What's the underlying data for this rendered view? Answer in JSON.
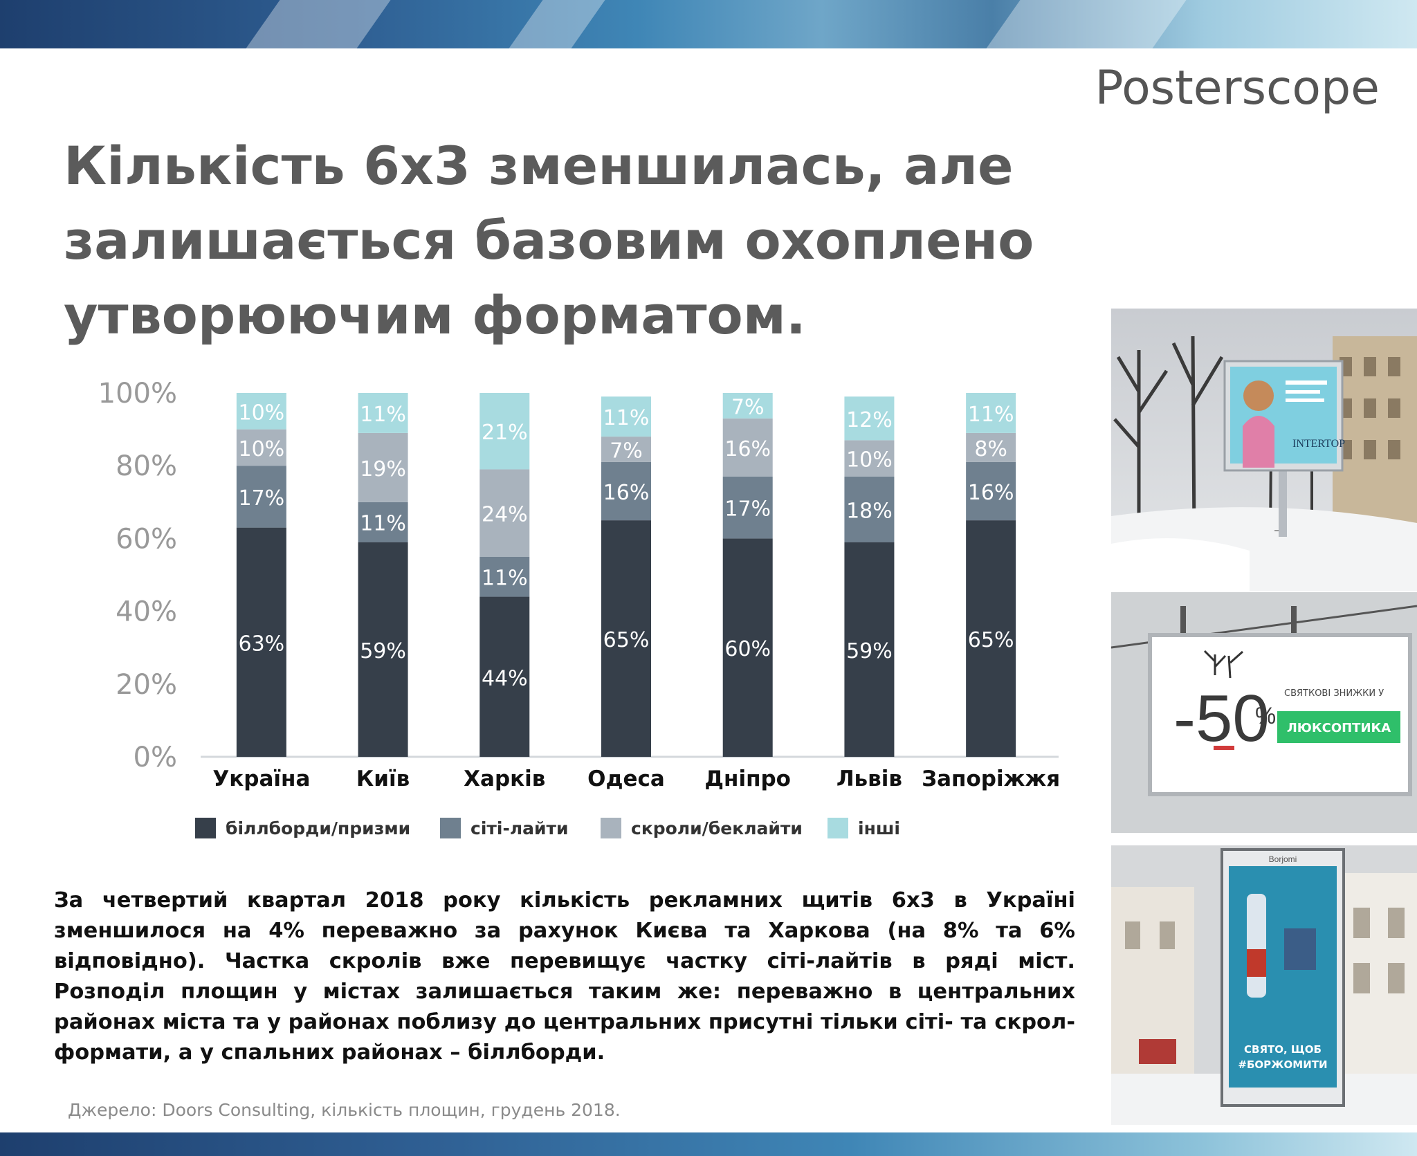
{
  "brand": {
    "logo_text": "Posterscope"
  },
  "title": "Кількість 6х3 зменшилась, але залишається базовим охоплено утворюючим форматом.",
  "chart_data": {
    "type": "bar",
    "stacked": true,
    "title": "",
    "xlabel": "",
    "ylabel": "",
    "ylim": [
      0,
      100
    ],
    "yticks": [
      "0%",
      "20%",
      "40%",
      "60%",
      "80%",
      "100%"
    ],
    "grid": false,
    "legend_position": "bottom",
    "categories": [
      "Україна",
      "Київ",
      "Харків",
      "Одеса",
      "Дніпро",
      "Львів",
      "Запоріжжя"
    ],
    "series": [
      {
        "name": "біллборди/призми",
        "color": "#363f4a",
        "values": [
          63,
          59,
          44,
          65,
          60,
          59,
          65
        ]
      },
      {
        "name": "сіті-лайти",
        "color": "#6f808f",
        "values": [
          17,
          11,
          11,
          16,
          17,
          18,
          16
        ]
      },
      {
        "name": "скроли/беклайти",
        "color": "#a9b3bd",
        "values": [
          10,
          19,
          24,
          7,
          16,
          10,
          8
        ]
      },
      {
        "name": "інші",
        "color": "#a8dbe0",
        "values": [
          10,
          11,
          21,
          11,
          7,
          12,
          11
        ]
      }
    ]
  },
  "body_text": "За четвертий квартал 2018 року кількість рекламних щитів 6х3 в Україні зменшилося на 4% переважно за рахунок Києва та Харкова (на 8% та 6% відповідно). Частка скролів вже перевищує частку сіті-лайтів в ряді міст. Розподіл площин у містах залишається таким же: переважно в центральних районах міста та у районах поблизу до центральних присутні тільки сіті- та скрол-формати, а у спальних районах – біллборди.",
  "source": "Джерело: Doors Consulting, кількість площин, грудень 2018.",
  "photos": [
    {
      "icon": "photo-winter-street-citylight",
      "brand_text": "INTERTOP"
    },
    {
      "icon": "photo-billboard-sale",
      "big_text": "-50",
      "percent": "%",
      "line1": "СВЯТКОВІ ЗНИЖКИ У",
      "badge": "ЛЮКСОПТИКА"
    },
    {
      "icon": "photo-citylight-street",
      "line1": "СВЯТО, ЩОБ",
      "line2": "#БОРЖОМИТИ",
      "header": "Borjomi"
    }
  ]
}
